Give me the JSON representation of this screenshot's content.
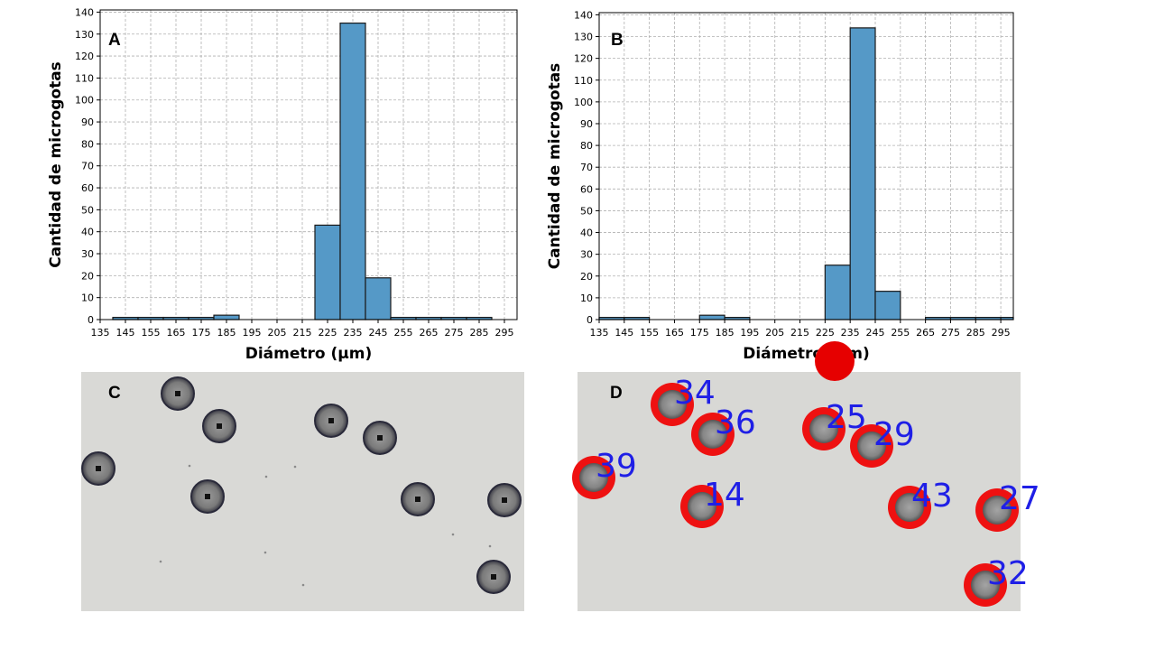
{
  "chart_data": [
    {
      "type": "bar",
      "panel_label": "A",
      "categories": [
        "135",
        "145",
        "155",
        "165",
        "175",
        "185",
        "195",
        "205",
        "215",
        "225",
        "235",
        "245",
        "255",
        "265",
        "275",
        "285",
        "295"
      ],
      "bins": [
        {
          "x0": 140,
          "x1": 150,
          "value": 1
        },
        {
          "x0": 150,
          "x1": 160,
          "value": 1
        },
        {
          "x0": 160,
          "x1": 170,
          "value": 1
        },
        {
          "x0": 170,
          "x1": 180,
          "value": 1
        },
        {
          "x0": 180,
          "x1": 190,
          "value": 2
        },
        {
          "x0": 220,
          "x1": 230,
          "value": 43
        },
        {
          "x0": 230,
          "x1": 240,
          "value": 135
        },
        {
          "x0": 240,
          "x1": 250,
          "value": 19
        },
        {
          "x0": 250,
          "x1": 260,
          "value": 1
        },
        {
          "x0": 260,
          "x1": 270,
          "value": 1
        },
        {
          "x0": 270,
          "x1": 280,
          "value": 1
        },
        {
          "x0": 280,
          "x1": 290,
          "value": 1
        }
      ],
      "xlabel": "Diámetro (µm)",
      "ylabel": "Cantidad de microgotas",
      "xlim": [
        135,
        300
      ],
      "ylim": [
        0,
        141
      ],
      "yticks": [
        0,
        10,
        20,
        30,
        40,
        50,
        60,
        70,
        80,
        90,
        100,
        110,
        120,
        130,
        140
      ],
      "grid": true,
      "bar_color": "#5599c7"
    },
    {
      "type": "bar",
      "panel_label": "B",
      "categories": [
        "135",
        "145",
        "155",
        "165",
        "175",
        "185",
        "195",
        "205",
        "215",
        "225",
        "235",
        "245",
        "255",
        "265",
        "275",
        "285",
        "295"
      ],
      "bins": [
        {
          "x0": 135,
          "x1": 145,
          "value": 1
        },
        {
          "x0": 145,
          "x1": 155,
          "value": 1
        },
        {
          "x0": 175,
          "x1": 185,
          "value": 2
        },
        {
          "x0": 185,
          "x1": 195,
          "value": 1
        },
        {
          "x0": 225,
          "x1": 235,
          "value": 25
        },
        {
          "x0": 235,
          "x1": 245,
          "value": 134
        },
        {
          "x0": 245,
          "x1": 255,
          "value": 13
        },
        {
          "x0": 265,
          "x1": 275,
          "value": 1
        },
        {
          "x0": 275,
          "x1": 285,
          "value": 1
        },
        {
          "x0": 285,
          "x1": 295,
          "value": 1
        },
        {
          "x0": 295,
          "x1": 300,
          "value": 1
        }
      ],
      "xlabel": "Diámetro (µm)",
      "ylabel": "Cantidad de microgotas",
      "xlim": [
        135,
        300
      ],
      "ylim": [
        0,
        141
      ],
      "yticks": [
        0,
        10,
        20,
        30,
        40,
        50,
        60,
        70,
        80,
        90,
        100,
        110,
        120,
        130,
        140
      ],
      "grid": true,
      "bar_color": "#5599c7"
    }
  ],
  "photo_c": {
    "panel_label": "C"
  },
  "photo_d": {
    "panel_label": "D",
    "droplet_labels": [
      "34",
      "36",
      "25",
      "29",
      "39",
      "14",
      "43",
      "27",
      "32"
    ]
  }
}
